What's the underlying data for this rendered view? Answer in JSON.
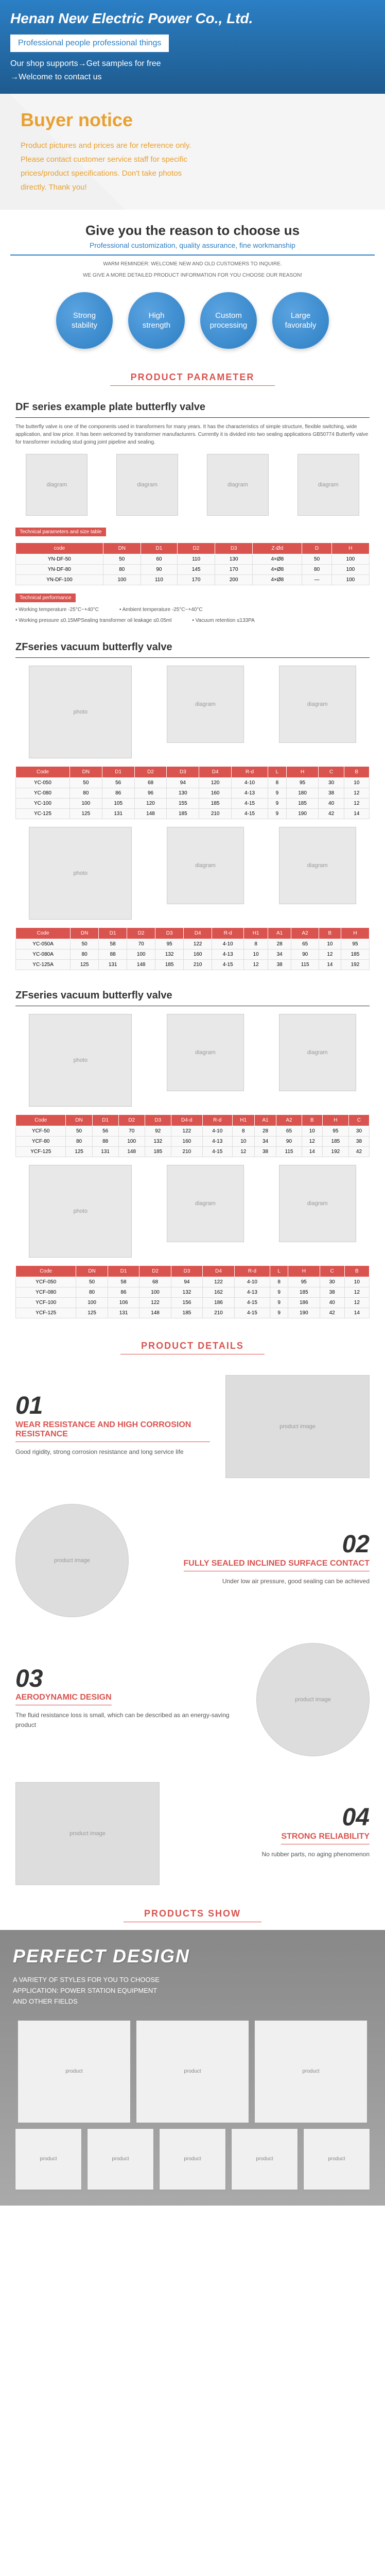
{
  "header": {
    "company": "Henan New Electric Power Co., Ltd.",
    "tagline": "Professional people professional things",
    "support1": "Our shop supports→Get samples for free",
    "support2": "→Welcome to contact us"
  },
  "notice": {
    "title": "Buyer notice",
    "line1": "Product pictures and prices are for reference only.",
    "line2": "Please contact customer service staff for specific",
    "line3": "prices/product specifications. Don't take photos",
    "line4": "directly. Thank you!"
  },
  "reason": {
    "title": "Give you the reason to choose us",
    "subtitle": "Professional customization, quality assurance, fine workmanship",
    "small1": "WARM REMINDER: WELCOME NEW AND OLD CUSTOMERS TO INQUIRE.",
    "small2": "WE GIVE A MORE DETAILED PRODUCT INFORMATION FOR YOU CHOOSE OUR REASON!",
    "circles": [
      {
        "l1": "Strong",
        "l2": "stability"
      },
      {
        "l1": "High",
        "l2": "strength"
      },
      {
        "l1": "Custom",
        "l2": "processing"
      },
      {
        "l1": "Large",
        "l2": "favorably"
      }
    ]
  },
  "sections": {
    "param": "PRODUCT PARAMETER",
    "details": "PRODUCT DETAILS",
    "show": "PRODUCTS SHOW"
  },
  "df": {
    "title": "DF series example plate butterfly valve",
    "desc": "The butterfly valve is one of the components used in transformers for many years. It has the characteristics of simple structure, flexible switching, wide application, and low price. It has been welcomed by transformer manufacturers. Currently it is divided into two sealing applications GB50774 Butterfly valve for transformer including stud going joint pipeline and sealing.",
    "spec1": "Technical parameters and size table",
    "spec2": "Technical performance",
    "perf1": "Working temperature -25°C~+40°C",
    "perf2": "Ambient temperature -25°C~+40°C",
    "perf3": "Working pressure ≤0.15MPSealing  transformer oil leakage ≤0.05ml",
    "perf4": "Vacuum retention ≤133PA",
    "table": {
      "headers": [
        "code",
        "DN",
        "D1",
        "D2",
        "D3",
        "Z-Ød",
        "D",
        "H"
      ],
      "rows": [
        [
          "YN-DF-50",
          "50",
          "60",
          "110",
          "130",
          "4×Ø8",
          "50",
          "100"
        ],
        [
          "YN-DF-80",
          "80",
          "90",
          "145",
          "170",
          "4×Ø8",
          "80",
          "100"
        ],
        [
          "YN-DF-100",
          "100",
          "110",
          "170",
          "200",
          "4×Ø8",
          "—",
          "100"
        ]
      ]
    }
  },
  "zf1": {
    "title": "ZFseries vacuum butterfly valve",
    "table1": {
      "headers": [
        "Code",
        "DN",
        "D1",
        "D2",
        "D3",
        "D4",
        "R-d",
        "L",
        "H",
        "C",
        "B"
      ],
      "rows": [
        [
          "YC-050",
          "50",
          "56",
          "68",
          "94",
          "120",
          "4-10",
          "8",
          "95",
          "30",
          "10"
        ],
        [
          "YC-080",
          "80",
          "86",
          "96",
          "130",
          "160",
          "4-13",
          "9",
          "180",
          "38",
          "12"
        ],
        [
          "YC-100",
          "100",
          "105",
          "120",
          "155",
          "185",
          "4-15",
          "9",
          "185",
          "40",
          "12"
        ],
        [
          "YC-125",
          "125",
          "131",
          "148",
          "185",
          "210",
          "4-15",
          "9",
          "190",
          "42",
          "14"
        ]
      ]
    },
    "table2": {
      "headers": [
        "Code",
        "DN",
        "D1",
        "D2",
        "D3",
        "D4",
        "R-d",
        "H1",
        "A1",
        "A2",
        "B",
        "H"
      ],
      "rows": [
        [
          "YC-050A",
          "50",
          "58",
          "70",
          "95",
          "122",
          "4-10",
          "8",
          "28",
          "65",
          "10",
          "95"
        ],
        [
          "YC-080A",
          "80",
          "88",
          "100",
          "132",
          "160",
          "4-13",
          "10",
          "34",
          "90",
          "12",
          "185"
        ],
        [
          "YC-125A",
          "125",
          "131",
          "148",
          "185",
          "210",
          "4-15",
          "12",
          "38",
          "115",
          "14",
          "192"
        ]
      ]
    }
  },
  "zf2": {
    "title": "ZFseries vacuum butterfly valve",
    "table1": {
      "headers": [
        "Code",
        "DN",
        "D1",
        "D2",
        "D3",
        "D4-d",
        "R-d",
        "H1",
        "A1",
        "A2",
        "B",
        "H",
        "C"
      ],
      "rows": [
        [
          "YCF-50",
          "50",
          "56",
          "70",
          "92",
          "122",
          "4-10",
          "8",
          "28",
          "65",
          "10",
          "95",
          "30"
        ],
        [
          "YCF-80",
          "80",
          "88",
          "100",
          "132",
          "160",
          "4-13",
          "10",
          "34",
          "90",
          "12",
          "185",
          "38"
        ],
        [
          "YCF-125",
          "125",
          "131",
          "148",
          "185",
          "210",
          "4-15",
          "12",
          "38",
          "115",
          "14",
          "192",
          "42"
        ]
      ]
    },
    "table2": {
      "headers": [
        "Code",
        "DN",
        "D1",
        "D2",
        "D3",
        "D4",
        "R-d",
        "L",
        "H",
        "C",
        "B"
      ],
      "rows": [
        [
          "YCF-050",
          "50",
          "58",
          "68",
          "94",
          "122",
          "4-10",
          "8",
          "95",
          "30",
          "10"
        ],
        [
          "YCF-080",
          "80",
          "86",
          "100",
          "132",
          "162",
          "4-13",
          "9",
          "185",
          "38",
          "12"
        ],
        [
          "YCF-100",
          "100",
          "106",
          "122",
          "156",
          "186",
          "4-15",
          "9",
          "186",
          "40",
          "12"
        ],
        [
          "YCF-125",
          "125",
          "131",
          "148",
          "185",
          "210",
          "4-15",
          "9",
          "190",
          "42",
          "14"
        ]
      ]
    }
  },
  "details": [
    {
      "num": "01",
      "title": "WEAR RESISTANCE AND HIGH CORROSION RESISTANCE",
      "desc": "Good rigidity, strong corrosion resistance and long service life"
    },
    {
      "num": "02",
      "title": "FULLY SEALED INCLINED SURFACE CONTACT",
      "desc": "Under low air pressure, good sealing can be achieved"
    },
    {
      "num": "03",
      "title": "AERODYNAMIC DESIGN",
      "desc": "The fluid resistance loss is small, which can be described as an energy-saving product"
    },
    {
      "num": "04",
      "title": "STRONG RELIABILITY",
      "desc": "No rubber parts, no aging phenomenon"
    }
  ],
  "show": {
    "title": "PERFECT DESIGN",
    "desc1": "A VARIETY OF STYLES FOR YOU TO CHOOSE",
    "desc2": "APPLICATION: POWER STATION EQUIPMENT",
    "desc3": "AND OTHER FIELDS"
  }
}
